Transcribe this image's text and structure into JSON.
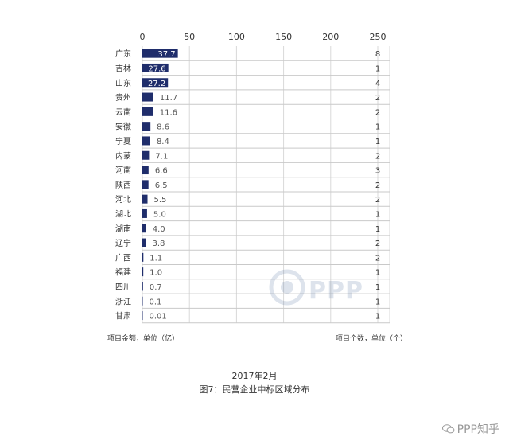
{
  "chart_data": {
    "type": "bar",
    "orientation": "horizontal",
    "categories": [
      "广东",
      "吉林",
      "山东",
      "贵州",
      "云南",
      "安徽",
      "宁夏",
      "内蒙",
      "河南",
      "陕西",
      "河北",
      "湖北",
      "湖南",
      "辽宁",
      "广西",
      "福建",
      "四川",
      "浙江",
      "甘肃"
    ],
    "values": [
      37.7,
      27.6,
      27.2,
      11.7,
      11.6,
      8.6,
      8.4,
      7.1,
      6.6,
      6.5,
      5.5,
      5.0,
      4.0,
      3.8,
      1.1,
      1.0,
      0.7,
      0.1,
      0.01
    ],
    "value_labels": [
      "37.7",
      "27.6",
      "27.2",
      "11.7",
      "11.6",
      "8.6",
      "8.4",
      "7.1",
      "6.6",
      "6.5",
      "5.5",
      "5.0",
      "4.0",
      "3.8",
      "1.1",
      "1.0",
      "0.7",
      "0.1",
      "0.01"
    ],
    "counts": [
      "8",
      "1",
      "4",
      "2",
      "2",
      "1",
      "1",
      "2",
      "3",
      "2",
      "2",
      "1",
      "1",
      "2",
      "2",
      "1",
      "1",
      "1",
      "1"
    ],
    "xlim": [
      0,
      250
    ],
    "xticks": [
      "0",
      "50",
      "100",
      "150",
      "200",
      "250"
    ],
    "xtick_values": [
      0,
      50,
      100,
      150,
      200,
      250
    ],
    "bar_color": "#1f2d6b",
    "grid": true,
    "left_axis_note": "项目金额，单位（亿）",
    "right_axis_note": "项目个数，单位（个）"
  },
  "caption": {
    "date": "2017年2月",
    "title": "图7：民营企业中标区域分布"
  },
  "watermark": {
    "center_text": "PPP",
    "corner_text": "PPP知乎"
  }
}
